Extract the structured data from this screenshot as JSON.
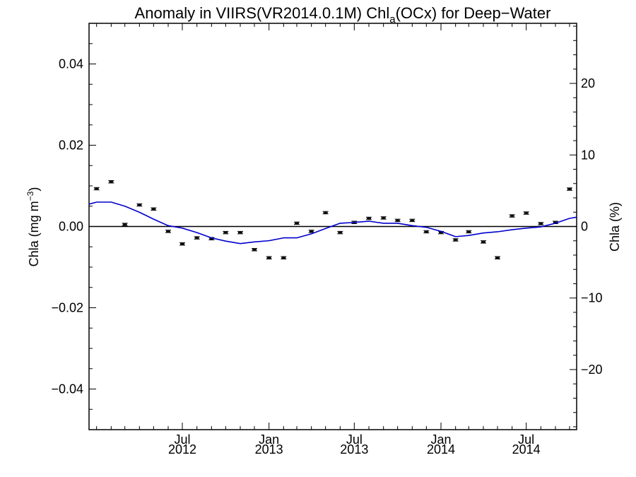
{
  "chart_data": {
    "type": "line",
    "title_main": "Anomaly in VIIRS(VR2014.0.1M) Chl",
    "title_sub": "a",
    "title_tail": "(OCx) for Deep−Water",
    "ylabel_left_main": "Chla (mg m",
    "ylabel_left_sup": "−3",
    "ylabel_left_tail": ")",
    "ylabel_right": "Chla (%)",
    "ylim_left": [
      -0.05,
      0.05
    ],
    "ylim_right": [
      -28.4,
      28.4
    ],
    "xlim": [
      "2011-12-16",
      "2014-10-16"
    ],
    "left_ticks": [
      {
        "value": 0.04,
        "label": "0.04"
      },
      {
        "value": 0.02,
        "label": "0.02"
      },
      {
        "value": 0.0,
        "label": "0.00"
      },
      {
        "value": -0.02,
        "label": "−0.02"
      },
      {
        "value": -0.04,
        "label": "−0.04"
      }
    ],
    "right_ticks": [
      {
        "value": 20,
        "label": "20"
      },
      {
        "value": 10,
        "label": "10"
      },
      {
        "value": 0,
        "label": "0"
      },
      {
        "value": -10,
        "label": "−10"
      },
      {
        "value": -20,
        "label": "−20"
      }
    ],
    "x_ticks": [
      {
        "date": "2012-07-01",
        "month": "Jul",
        "year": "2012"
      },
      {
        "date": "2013-01-01",
        "month": "Jan",
        "year": "2013"
      },
      {
        "date": "2013-07-01",
        "month": "Jul",
        "year": "2013"
      },
      {
        "date": "2014-01-01",
        "month": "Jan",
        "year": "2014"
      },
      {
        "date": "2014-07-01",
        "month": "Jul",
        "year": "2014"
      }
    ],
    "series": [
      {
        "style": "points-with-errorbars",
        "color": "#000000",
        "x": [
          "2012-01-01",
          "2012-02-01",
          "2012-03-01",
          "2012-04-01",
          "2012-05-01",
          "2012-06-01",
          "2012-07-01",
          "2012-08-01",
          "2012-09-01",
          "2012-10-01",
          "2012-11-01",
          "2012-12-01",
          "2013-01-01",
          "2013-02-01",
          "2013-03-01",
          "2013-04-01",
          "2013-05-01",
          "2013-06-01",
          "2013-07-01",
          "2013-08-01",
          "2013-09-01",
          "2013-10-01",
          "2013-11-01",
          "2013-12-01",
          "2014-01-01",
          "2014-02-01",
          "2014-03-01",
          "2014-04-01",
          "2014-05-01",
          "2014-06-01",
          "2014-07-01",
          "2014-08-01",
          "2014-09-01",
          "2014-10-01"
        ],
        "y": [
          0.0093,
          0.011,
          0.0005,
          0.0053,
          0.0043,
          -0.0012,
          -0.0043,
          -0.0028,
          -0.003,
          -0.0015,
          -0.0015,
          -0.0057,
          -0.0077,
          -0.0077,
          0.0008,
          -0.0012,
          0.0034,
          -0.0015,
          0.001,
          0.002,
          0.0021,
          0.0015,
          0.0015,
          -0.0013,
          -0.0015,
          -0.0033,
          -0.0013,
          -0.0038,
          -0.0077,
          0.0026,
          0.0033,
          0.0007,
          0.001,
          0.0092
        ],
        "err": 0.0003
      },
      {
        "style": "line",
        "color": "#0000cc",
        "x": [
          "2011-12-16",
          "2012-01-01",
          "2012-02-01",
          "2012-03-01",
          "2012-04-01",
          "2012-05-01",
          "2012-06-01",
          "2012-07-01",
          "2012-08-01",
          "2012-09-01",
          "2012-10-01",
          "2012-11-01",
          "2012-12-01",
          "2013-01-01",
          "2013-02-01",
          "2013-03-01",
          "2013-04-01",
          "2013-05-01",
          "2013-06-01",
          "2013-07-01",
          "2013-08-01",
          "2013-09-01",
          "2013-10-01",
          "2013-11-01",
          "2013-12-01",
          "2014-01-01",
          "2014-02-01",
          "2014-03-01",
          "2014-04-01",
          "2014-05-01",
          "2014-06-01",
          "2014-07-01",
          "2014-08-01",
          "2014-09-01",
          "2014-10-01",
          "2014-10-16"
        ],
        "y": [
          0.0055,
          0.006,
          0.006,
          0.005,
          0.0035,
          0.0018,
          0.0002,
          -0.0004,
          -0.0015,
          -0.0028,
          -0.0036,
          -0.0042,
          -0.0038,
          -0.0035,
          -0.0028,
          -0.0028,
          -0.0018,
          -0.0005,
          0.0008,
          0.001,
          0.0013,
          0.0008,
          0.0008,
          0.0002,
          -0.0002,
          -0.0012,
          -0.0025,
          -0.0022,
          -0.0016,
          -0.0013,
          -0.0008,
          -0.0004,
          -0.0001,
          0.0008,
          0.002,
          0.0023
        ]
      }
    ],
    "zero_line": true,
    "grid": false,
    "legend": "none"
  }
}
